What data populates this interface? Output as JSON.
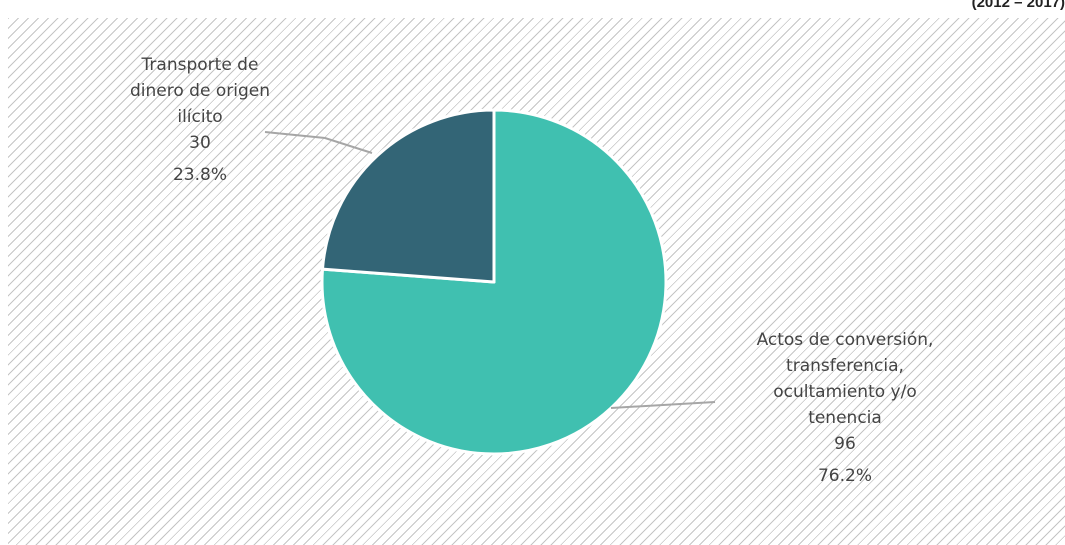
{
  "header": {
    "period": "(2012 – 2017)"
  },
  "chart_data": {
    "type": "pie",
    "slices": [
      {
        "label_lines": [
          "Actos de conversión,",
          "transferencia,",
          "ocultamiento y/o",
          "tenencia"
        ],
        "value": 96,
        "value_label": "96",
        "percent_label": "76.2%",
        "color": "#40c0b0"
      },
      {
        "label_lines": [
          "Transporte de",
          "dinero de origen",
          "ilícito"
        ],
        "value": 30,
        "value_label": "30",
        "percent_label": "23.8%",
        "color": "#336576"
      }
    ]
  }
}
